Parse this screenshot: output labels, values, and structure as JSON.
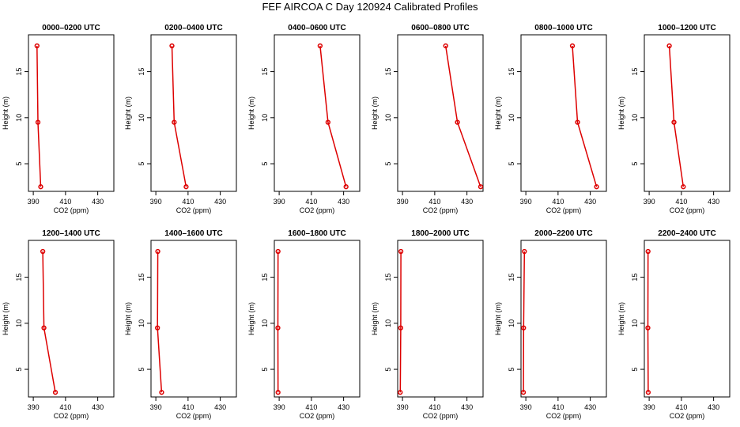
{
  "title": "FEF AIRCOA C  Day 120924  Calibrated Profiles",
  "style": {
    "line_color": "#dd0000",
    "axis_color": "#000000"
  },
  "chart_data": [
    {
      "type": "line",
      "title": "0000–0200 UTC",
      "xlabel": "CO2 (ppm)",
      "ylabel": "Height (m)",
      "xlim": [
        387,
        440
      ],
      "ylim": [
        2,
        19
      ],
      "xticks": [
        390,
        410,
        430
      ],
      "yticks": [
        5,
        10,
        15
      ],
      "series": [
        {
          "x": [
            394.6,
            392.9,
            392.3
          ],
          "y": [
            2.5,
            9.5,
            17.8
          ]
        }
      ]
    },
    {
      "type": "line",
      "title": "0200–0400 UTC",
      "xlabel": "CO2 (ppm)",
      "ylabel": "Height (m)",
      "xlim": [
        387,
        440
      ],
      "ylim": [
        2,
        19
      ],
      "xticks": [
        390,
        410,
        430
      ],
      "yticks": [
        5,
        10,
        15
      ],
      "series": [
        {
          "x": [
            408.8,
            401.4,
            400.0
          ],
          "y": [
            2.5,
            9.5,
            17.8
          ]
        }
      ]
    },
    {
      "type": "line",
      "title": "0400–0600 UTC",
      "xlabel": "CO2 (ppm)",
      "ylabel": "Height (m)",
      "xlim": [
        387,
        440
      ],
      "ylim": [
        2,
        19
      ],
      "xticks": [
        390,
        410,
        430
      ],
      "yticks": [
        5,
        10,
        15
      ],
      "series": [
        {
          "x": [
            431.5,
            420.3,
            415.4
          ],
          "y": [
            2.5,
            9.5,
            17.8
          ]
        }
      ]
    },
    {
      "type": "line",
      "title": "0600–0800 UTC",
      "xlabel": "CO2 (ppm)",
      "ylabel": "Height (m)",
      "xlim": [
        387,
        440
      ],
      "ylim": [
        2,
        19
      ],
      "xticks": [
        390,
        410,
        430
      ],
      "yticks": [
        5,
        10,
        15
      ],
      "series": [
        {
          "x": [
            438.5,
            424.1,
            416.8
          ],
          "y": [
            2.5,
            9.5,
            17.8
          ]
        }
      ]
    },
    {
      "type": "line",
      "title": "0800–1000 UTC",
      "xlabel": "CO2 (ppm)",
      "ylabel": "Height (m)",
      "xlim": [
        387,
        440
      ],
      "ylim": [
        2,
        19
      ],
      "xticks": [
        390,
        410,
        430
      ],
      "yticks": [
        5,
        10,
        15
      ],
      "series": [
        {
          "x": [
            433.9,
            422.1,
            418.9
          ],
          "y": [
            2.5,
            9.5,
            17.8
          ]
        }
      ]
    },
    {
      "type": "line",
      "title": "1000–1200 UTC",
      "xlabel": "CO2 (ppm)",
      "ylabel": "Height (m)",
      "xlim": [
        387,
        440
      ],
      "ylim": [
        2,
        19
      ],
      "xticks": [
        390,
        410,
        430
      ],
      "yticks": [
        5,
        10,
        15
      ],
      "series": [
        {
          "x": [
            411.2,
            405.4,
            402.5
          ],
          "y": [
            2.5,
            9.5,
            17.8
          ]
        }
      ]
    },
    {
      "type": "line",
      "title": "1200–1400 UTC",
      "xlabel": "CO2 (ppm)",
      "ylabel": "Height (m)",
      "xlim": [
        387,
        440
      ],
      "ylim": [
        2,
        19
      ],
      "xticks": [
        390,
        410,
        430
      ],
      "yticks": [
        5,
        10,
        15
      ],
      "series": [
        {
          "x": [
            403.7,
            396.6,
            395.9
          ],
          "y": [
            2.5,
            9.5,
            17.8
          ]
        }
      ]
    },
    {
      "type": "line",
      "title": "1400–1600 UTC",
      "xlabel": "CO2 (ppm)",
      "ylabel": "Height (m)",
      "xlim": [
        387,
        440
      ],
      "ylim": [
        2,
        19
      ],
      "xticks": [
        390,
        410,
        430
      ],
      "yticks": [
        5,
        10,
        15
      ],
      "series": [
        {
          "x": [
            393.6,
            391.0,
            391.2
          ],
          "y": [
            2.5,
            9.5,
            17.8
          ]
        }
      ]
    },
    {
      "type": "line",
      "title": "1600–1800 UTC",
      "xlabel": "CO2 (ppm)",
      "ylabel": "Height (m)",
      "xlim": [
        387,
        440
      ],
      "ylim": [
        2,
        19
      ],
      "xticks": [
        390,
        410,
        430
      ],
      "yticks": [
        5,
        10,
        15
      ],
      "series": [
        {
          "x": [
            389.3,
            389.2,
            389.3
          ],
          "y": [
            2.5,
            9.5,
            17.8
          ]
        }
      ]
    },
    {
      "type": "line",
      "title": "1800–2000 UTC",
      "xlabel": "CO2 (ppm)",
      "ylabel": "Height (m)",
      "xlim": [
        387,
        440
      ],
      "ylim": [
        2,
        19
      ],
      "xticks": [
        390,
        410,
        430
      ],
      "yticks": [
        5,
        10,
        15
      ],
      "series": [
        {
          "x": [
            388.6,
            388.9,
            389.0
          ],
          "y": [
            2.5,
            9.5,
            17.8
          ]
        }
      ]
    },
    {
      "type": "line",
      "title": "2000–2200 UTC",
      "xlabel": "CO2 (ppm)",
      "ylabel": "Height (m)",
      "xlim": [
        387,
        440
      ],
      "ylim": [
        2,
        19
      ],
      "xticks": [
        390,
        410,
        430
      ],
      "yticks": [
        5,
        10,
        15
      ],
      "series": [
        {
          "x": [
            388.5,
            388.6,
            389.1
          ],
          "y": [
            2.5,
            9.5,
            17.8
          ]
        }
      ]
    },
    {
      "type": "line",
      "title": "2200–2400 UTC",
      "xlabel": "CO2 (ppm)",
      "ylabel": "Height (m)",
      "xlim": [
        387,
        440
      ],
      "ylim": [
        2,
        19
      ],
      "xticks": [
        390,
        410,
        430
      ],
      "yticks": [
        5,
        10,
        15
      ],
      "series": [
        {
          "x": [
            389.4,
            389.2,
            389.3
          ],
          "y": [
            2.5,
            9.5,
            17.8
          ]
        }
      ]
    }
  ]
}
